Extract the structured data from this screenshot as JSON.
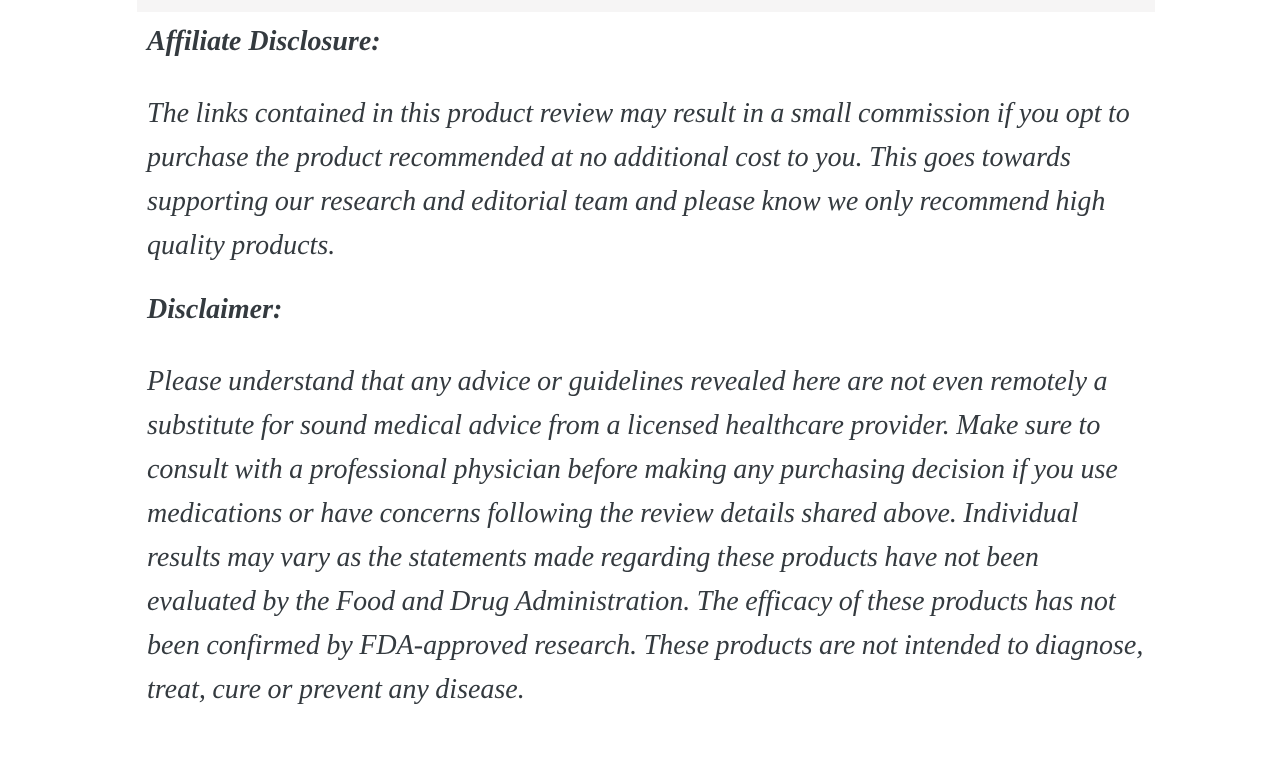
{
  "page": {
    "background_color": "#ffffff",
    "top_strip_color": "#f6f5f5",
    "text_color": "#343a3f"
  },
  "article": {
    "sections": [
      {
        "heading": "Affiliate Disclosure:",
        "body": "The links contained in this product review may result in a small commission if you opt to purchase the product recommended at no additional cost to you. This goes towards supporting our research and editorial team and please know we only recommend high quality products."
      },
      {
        "heading": "Disclaimer:",
        "body": "Please understand that any advice or guidelines revealed here are not even remotely a substitute for sound medical advice from a licensed healthcare provider. Make sure to consult with a professional physician before making any purchasing decision if you use medications or have concerns following the review details shared above. Individual results may vary as the statements made regarding these products have not been evaluated by the Food and Drug Administration. The efficacy of these products has not been confirmed by FDA-approved research. These products are not intended to diagnose, treat, cure or prevent any disease."
      }
    ]
  }
}
